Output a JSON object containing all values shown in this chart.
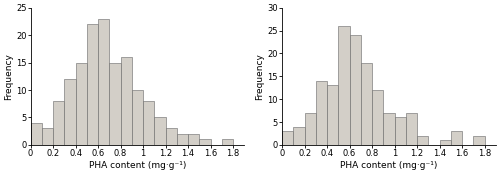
{
  "left": {
    "bar_heights": [
      4,
      3,
      8,
      12,
      15,
      22,
      23,
      15,
      16,
      10,
      8,
      5,
      3,
      2,
      2,
      1,
      0,
      1
    ],
    "ylim": [
      0,
      25
    ],
    "yticks": [
      0,
      5,
      10,
      15,
      20,
      25
    ],
    "xlabel": "PHA content (mg·g⁻¹)",
    "ylabel": "Frequency",
    "xticks": [
      0,
      0.2,
      0.4,
      0.6,
      0.8,
      1.0,
      1.2,
      1.4,
      1.6,
      1.8
    ]
  },
  "right": {
    "bar_heights": [
      3,
      4,
      7,
      14,
      13,
      26,
      24,
      18,
      12,
      7,
      6,
      7,
      2,
      0,
      1,
      3,
      0,
      2
    ],
    "ylim": [
      0,
      30
    ],
    "yticks": [
      0,
      5,
      10,
      15,
      20,
      25,
      30
    ],
    "xlabel": "PHA content (mg·g⁻¹)",
    "ylabel": "Frequency",
    "xticks": [
      0,
      0.2,
      0.4,
      0.6,
      0.8,
      1.0,
      1.2,
      1.4,
      1.6,
      1.8
    ]
  },
  "bar_color": "#d3cfc8",
  "bar_edgecolor": "#666666",
  "bar_linewidth": 0.4,
  "bin_width": 0.1,
  "bin_start": 0.0,
  "xlim": [
    0,
    1.9
  ],
  "font_size": 6.5,
  "tick_font_size": 6,
  "xlabel_pad": 2,
  "ylabel_pad": 2
}
